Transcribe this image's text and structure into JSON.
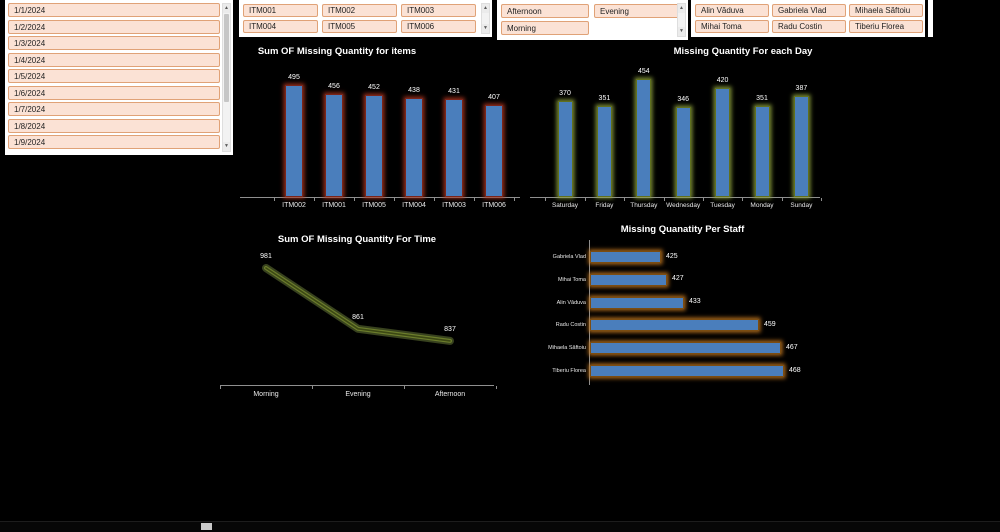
{
  "colors": {
    "bg": "#000000",
    "panel": "#ffffff",
    "slicer-bg": "#fbe2d5",
    "slicer-border": "#e0a277",
    "bar-fill": "#4a7ebc",
    "chart1-border": "#7a241a",
    "chart1-glow": "rgba(168,52,31,0.85)",
    "chart2-border": "#60701f",
    "chart2-glow": "rgba(140,160,60,0.85)",
    "chart4-border": "#7c4d12",
    "chart4-glow": "rgba(196,120,32,0.85)",
    "line-core": "#3c4814",
    "line-mid": "#6e7f2d",
    "line-glow": "#8da44c",
    "axis": "#8f8f8f"
  },
  "icons": {
    "scroll-up": "▲",
    "scroll-down": "▼"
  },
  "slicers": {
    "date": {
      "items": [
        "1/1/2024",
        "1/2/2024",
        "1/3/2024",
        "1/4/2024",
        "1/5/2024",
        "1/6/2024",
        "1/7/2024",
        "1/8/2024",
        "1/9/2024"
      ]
    },
    "item": {
      "items": [
        "ITM001",
        "ITM002",
        "ITM003",
        "ITM004",
        "ITM005",
        "ITM006"
      ]
    },
    "time": {
      "items": [
        "Afternoon",
        "Evening",
        "Morning"
      ]
    },
    "staff": {
      "items": [
        "Alin Văduva",
        "Gabriela Vlad",
        "Mihaela Săftoiu",
        "Mihai Toma",
        "Radu Costin",
        "Tiberiu Florea"
      ]
    }
  },
  "chart_data": [
    {
      "type": "bar",
      "title": "Sum OF Missing Quantity for items",
      "categories": [
        "ITM002",
        "ITM001",
        "ITM005",
        "ITM004",
        "ITM003",
        "ITM006"
      ],
      "values": [
        495,
        456,
        452,
        438,
        431,
        407
      ],
      "ylim": [
        0,
        550
      ],
      "data_labels": true,
      "legend": "none"
    },
    {
      "type": "bar",
      "title": "Missing Quantity For each Day",
      "categories": [
        "Saturday",
        "Friday",
        "Thursday",
        "Wednesday",
        "Tuesday",
        "Monday",
        "Sunday"
      ],
      "values": [
        370,
        351,
        454,
        346,
        420,
        351,
        387
      ],
      "ylim": [
        0,
        500
      ],
      "data_labels": true,
      "legend": "none"
    },
    {
      "type": "line",
      "title": "Sum OF Missing Quantity For Time",
      "categories": [
        "Morning",
        "Evening",
        "Afternoon"
      ],
      "values": [
        981,
        861,
        837
      ],
      "ylim": [
        750,
        1050
      ],
      "data_labels": true,
      "legend": "none"
    },
    {
      "type": "bar",
      "orientation": "horizontal",
      "title": "Missing Quanatity Per Staff",
      "categories": [
        "Gabriela Vlad",
        "Mihai Toma",
        "Alin Văduva",
        "Radu Costin",
        "Mihaela Săftoiu",
        "Tiberiu Florea"
      ],
      "values": [
        425,
        427,
        433,
        459,
        467,
        468
      ],
      "xlim": [
        400,
        470
      ],
      "data_labels": true,
      "legend": "none"
    }
  ]
}
